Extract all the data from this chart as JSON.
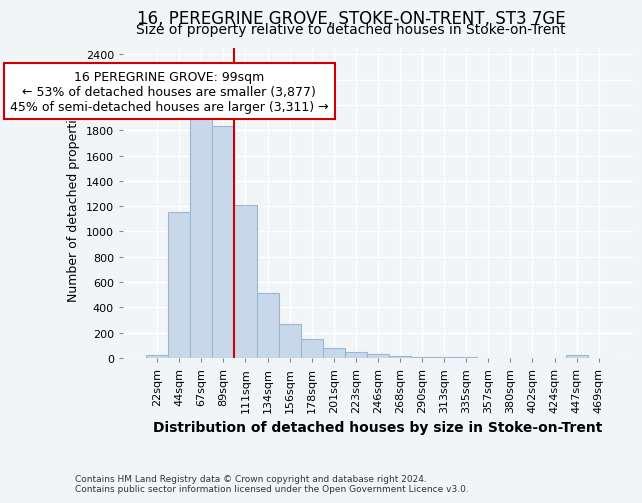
{
  "title": "16, PEREGRINE GROVE, STOKE-ON-TRENT, ST3 7GE",
  "subtitle": "Size of property relative to detached houses in Stoke-on-Trent",
  "xlabel": "Distribution of detached houses by size in Stoke-on-Trent",
  "ylabel": "Number of detached properties",
  "footnote": "Contains HM Land Registry data © Crown copyright and database right 2024.\nContains public sector information licensed under the Open Government Licence v3.0.",
  "bar_labels": [
    "22sqm",
    "44sqm",
    "67sqm",
    "89sqm",
    "111sqm",
    "134sqm",
    "156sqm",
    "178sqm",
    "201sqm",
    "223sqm",
    "246sqm",
    "268sqm",
    "290sqm",
    "313sqm",
    "335sqm",
    "357sqm",
    "380sqm",
    "402sqm",
    "424sqm",
    "447sqm",
    "469sqm"
  ],
  "bar_values": [
    25,
    1150,
    1940,
    1830,
    1210,
    510,
    265,
    150,
    80,
    50,
    35,
    15,
    5,
    5,
    5,
    3,
    2,
    2,
    1,
    20,
    2
  ],
  "bar_color": "#c8d8ea",
  "bar_edgecolor": "#9ab8d0",
  "vline_x": 3.5,
  "vline_color": "#cc0000",
  "annotation_text": "16 PEREGRINE GROVE: 99sqm\n← 53% of detached houses are smaller (3,877)\n45% of semi-detached houses are larger (3,311) →",
  "annotation_box_edgecolor": "#cc0000",
  "annotation_box_facecolor": "#ffffff",
  "ylim": [
    0,
    2450
  ],
  "yticks": [
    0,
    200,
    400,
    600,
    800,
    1000,
    1200,
    1400,
    1600,
    1800,
    2000,
    2200,
    2400
  ],
  "background_color": "#f2f5f8",
  "grid_color": "#ffffff",
  "title_fontsize": 12,
  "subtitle_fontsize": 10,
  "xlabel_fontsize": 10,
  "ylabel_fontsize": 9,
  "tick_fontsize": 8,
  "annot_fontsize": 9
}
